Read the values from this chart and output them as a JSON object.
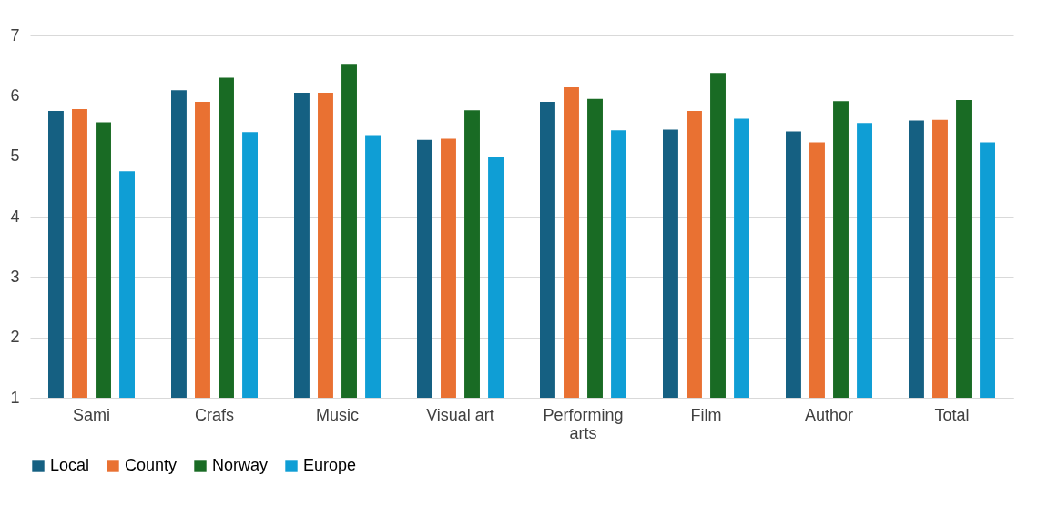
{
  "chart_data": {
    "type": "bar",
    "categories": [
      "Sami",
      "Crafs",
      "Music",
      "Visual art",
      "Performing arts",
      "Film",
      "Author",
      "Total"
    ],
    "series": [
      {
        "name": "Local",
        "color": "#156082",
        "values": [
          5.75,
          6.09,
          6.05,
          5.27,
          5.9,
          5.44,
          5.41,
          5.59
        ]
      },
      {
        "name": "County",
        "color": "#e97132",
        "values": [
          5.78,
          5.9,
          6.05,
          5.29,
          6.14,
          5.75,
          5.23,
          5.6
        ]
      },
      {
        "name": "Norway",
        "color": "#196b24",
        "values": [
          5.56,
          6.3,
          6.53,
          5.76,
          5.95,
          6.38,
          5.91,
          5.93
        ]
      },
      {
        "name": "Europe",
        "color": "#0f9ed5",
        "values": [
          4.75,
          5.4,
          5.35,
          4.98,
          5.43,
          5.62,
          5.55,
          5.23
        ]
      }
    ],
    "ylim": [
      1,
      7
    ],
    "yticks": [
      1,
      2,
      3,
      4,
      5,
      6,
      7
    ],
    "grid": "y",
    "legend": "bottom"
  }
}
